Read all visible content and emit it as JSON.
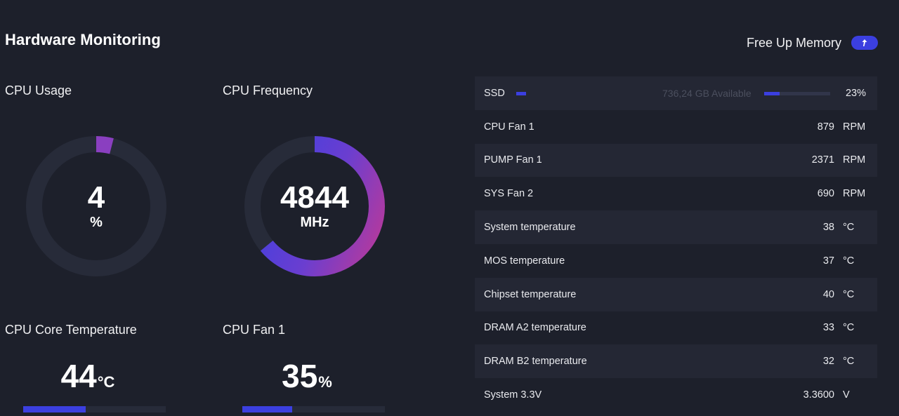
{
  "header": {
    "title": "Hardware Monitoring",
    "free_memory_label": "Free Up Memory"
  },
  "gauges": {
    "cpu_usage": {
      "label": "CPU Usage",
      "value": "4",
      "unit": "%",
      "fraction": 0.04
    },
    "cpu_frequency": {
      "label": "CPU Frequency",
      "value": "4844",
      "unit": "MHz",
      "fraction": 0.64
    }
  },
  "stats": {
    "cpu_core_temp": {
      "label": "CPU Core Temperature",
      "value": "44",
      "unit": "°C",
      "fraction": 0.44
    },
    "cpu_fan": {
      "label": "CPU Fan 1",
      "value": "35",
      "unit": "%",
      "fraction": 0.35
    }
  },
  "ssd": {
    "label": "SSD",
    "available": "736,24 GB Available",
    "percent": "23%",
    "fraction": 0.23
  },
  "sensors": [
    {
      "label": "CPU Fan 1",
      "value": "879",
      "unit": "RPM"
    },
    {
      "label": "PUMP Fan 1",
      "value": "2371",
      "unit": "RPM"
    },
    {
      "label": "SYS Fan 2",
      "value": "690",
      "unit": "RPM"
    },
    {
      "label": "System temperature",
      "value": "38",
      "unit": "°C"
    },
    {
      "label": "MOS temperature",
      "value": "37",
      "unit": "°C"
    },
    {
      "label": "Chipset temperature",
      "value": "40",
      "unit": "°C"
    },
    {
      "label": "DRAM A2 temperature",
      "value": "33",
      "unit": "°C"
    },
    {
      "label": "DRAM B2 temperature",
      "value": "32",
      "unit": "°C"
    },
    {
      "label": "System 3.3V",
      "value": "3.3600",
      "unit": "V"
    }
  ],
  "colors": {
    "background": "#1d202b",
    "row_alt": "#242734",
    "accent": "#3b3fe0",
    "gauge_track": "#272b39",
    "gradient_start": "#4040e0",
    "gradient_end": "#b03aa0"
  },
  "icons": {
    "free_memory": "up-arrow-icon"
  }
}
